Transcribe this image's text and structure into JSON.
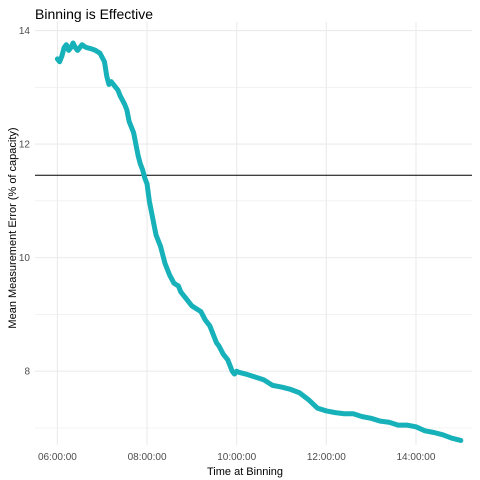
{
  "chart_data": {
    "type": "line",
    "title": "Binning is Effective",
    "xlabel": "Time at Binning",
    "ylabel": "Mean Measurement Error (% of capacity)",
    "x_tick_labels": [
      "06:00:00",
      "08:00:00",
      "10:00:00",
      "12:00:00",
      "14:00:00"
    ],
    "x_tick_hours": [
      6,
      8,
      10,
      12,
      14
    ],
    "y_ticks": [
      8,
      10,
      12,
      14
    ],
    "xlim": [
      5.5,
      15.25
    ],
    "ylim": [
      6.7,
      14.15
    ],
    "grid": true,
    "line_color": "#17B1BA",
    "hline": {
      "y": 11.45,
      "color": "#000000"
    },
    "series": [
      {
        "x": [
          6.0,
          6.05,
          6.1,
          6.15,
          6.2,
          6.25,
          6.3,
          6.35,
          6.4,
          6.45,
          6.5,
          6.55,
          6.6,
          6.65,
          6.75,
          6.85,
          6.95,
          7.05,
          7.1,
          7.15,
          7.2,
          7.3,
          7.35,
          7.4,
          7.5,
          7.55,
          7.6,
          7.7,
          7.75,
          7.8,
          7.85,
          7.9,
          7.95,
          8.0,
          8.05,
          8.1,
          8.15,
          8.2,
          8.3,
          8.4,
          8.45,
          8.5,
          8.6,
          8.7,
          8.75,
          8.8,
          8.9,
          9.0,
          9.1,
          9.2,
          9.3,
          9.4,
          9.5,
          9.55,
          9.6,
          9.7,
          9.8,
          9.9,
          9.95,
          10.0,
          10.05,
          10.2,
          10.4,
          10.6,
          10.8,
          11.0,
          11.2,
          11.4,
          11.6,
          11.8,
          12.0,
          12.2,
          12.4,
          12.6,
          12.8,
          13.0,
          13.2,
          13.4,
          13.6,
          13.8,
          14.0,
          14.2,
          14.4,
          14.6,
          14.8,
          15.0
        ],
        "y": [
          13.5,
          13.45,
          13.55,
          13.7,
          13.75,
          13.65,
          13.7,
          13.78,
          13.7,
          13.65,
          13.7,
          13.75,
          13.72,
          13.7,
          13.68,
          13.65,
          13.6,
          13.45,
          13.2,
          13.05,
          13.1,
          13.0,
          12.95,
          12.85,
          12.7,
          12.6,
          12.4,
          12.2,
          12.0,
          11.8,
          11.65,
          11.55,
          11.4,
          11.3,
          11.0,
          10.8,
          10.6,
          10.4,
          10.2,
          9.9,
          9.8,
          9.7,
          9.55,
          9.5,
          9.4,
          9.35,
          9.25,
          9.15,
          9.1,
          9.05,
          8.9,
          8.8,
          8.6,
          8.5,
          8.45,
          8.3,
          8.2,
          8.0,
          7.95,
          8.0,
          7.98,
          7.95,
          7.9,
          7.85,
          7.75,
          7.72,
          7.68,
          7.62,
          7.5,
          7.35,
          7.3,
          7.27,
          7.25,
          7.25,
          7.2,
          7.17,
          7.12,
          7.1,
          7.05,
          7.05,
          7.02,
          6.95,
          6.92,
          6.88,
          6.82,
          6.78
        ]
      }
    ]
  }
}
